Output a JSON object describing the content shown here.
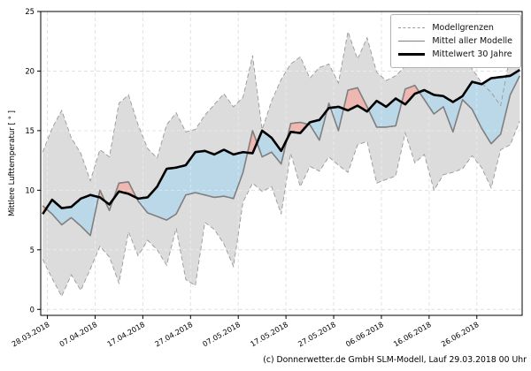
{
  "chart_data": {
    "type": "line",
    "title": "",
    "ylabel": "Mittlere Lufttemperatur [ ° ]",
    "footer": "(c) Donnerwetter.de GmbH SLM-Modell, Lauf 29.03.2018 00 Uhr",
    "x_unit": "days since 28.03.2018",
    "xlim": [
      -1.4,
      99.5
    ],
    "ylim": [
      -0.5,
      25
    ],
    "y_ticks": [
      0,
      5,
      10,
      15,
      20,
      25
    ],
    "x_ticks_days": [
      0,
      10,
      20,
      30,
      40,
      50,
      60,
      70,
      80,
      90
    ],
    "x_tick_labels": [
      "28.03.2018",
      "07.04.2018",
      "17.04.2018",
      "27.04.2018",
      "07.05.2018",
      "17.05.2018",
      "27.05.2018",
      "06.06.2018",
      "16.06.2018",
      "26.06.2018"
    ],
    "grid": true,
    "legend_position": "upper right",
    "legend": [
      {
        "label": "Modellgrenzen",
        "sample": "dashed-gray"
      },
      {
        "label": "Mittel aller Modelle",
        "sample": "solid-gray"
      },
      {
        "label": "Mittelwert 30 Jahre",
        "sample": "solid-black"
      }
    ],
    "x_days": [
      -1,
      1,
      3,
      5,
      7,
      9,
      11,
      13,
      15,
      17,
      19,
      21,
      23,
      25,
      27,
      29,
      31,
      33,
      35,
      37,
      39,
      41,
      43,
      45,
      47,
      49,
      51,
      53,
      55,
      57,
      59,
      61,
      63,
      65,
      67,
      69,
      71,
      73,
      75,
      77,
      79,
      81,
      83,
      85,
      87,
      89,
      91,
      93,
      95,
      97,
      99
    ],
    "series": [
      {
        "name": "Modellgrenze oben",
        "role": "upper_bound",
        "values": [
          13.2,
          15.2,
          16.7,
          14.4,
          13.1,
          10.8,
          13.4,
          12.8,
          17.3,
          18.0,
          15.5,
          13.5,
          12.7,
          15.5,
          16.5,
          14.9,
          15.1,
          16.3,
          17.2,
          18.1,
          17.0,
          17.8,
          21.3,
          15.1,
          17.5,
          19.3,
          20.6,
          21.2,
          19.4,
          20.3,
          20.6,
          19.0,
          23.3,
          21.0,
          22.8,
          19.9,
          19.2,
          19.6,
          20.4,
          22.0,
          20.2,
          24.1,
          20.4,
          21.4,
          20.8,
          20.2,
          19.0,
          18.2,
          17.1,
          21.4,
          23.0
        ]
      },
      {
        "name": "Modellgrenze unten",
        "role": "lower_bound",
        "values": [
          4.2,
          2.6,
          1.1,
          2.9,
          1.6,
          3.4,
          5.3,
          4.4,
          2.2,
          6.5,
          4.5,
          5.8,
          5.0,
          3.7,
          6.8,
          2.5,
          2.0,
          7.3,
          6.7,
          5.5,
          3.6,
          9.0,
          10.6,
          9.9,
          10.3,
          8.0,
          13.1,
          10.3,
          12.0,
          11.6,
          12.8,
          12.1,
          11.5,
          13.8,
          14.1,
          10.6,
          10.9,
          11.2,
          14.8,
          12.3,
          13.0,
          10.0,
          11.3,
          11.5,
          11.8,
          12.9,
          11.9,
          10.2,
          13.4,
          13.8,
          15.8
        ]
      },
      {
        "name": "Mittel aller Modelle",
        "role": "model_mean",
        "values": [
          8.7,
          8.0,
          7.1,
          7.7,
          7.0,
          6.2,
          10.0,
          8.3,
          10.6,
          10.7,
          9.1,
          8.1,
          7.8,
          7.5,
          8.0,
          9.6,
          9.8,
          9.6,
          9.4,
          9.5,
          9.3,
          11.5,
          15.0,
          12.8,
          13.2,
          12.2,
          15.6,
          15.7,
          15.5,
          14.2,
          17.3,
          15.0,
          18.4,
          18.6,
          17.0,
          15.3,
          15.3,
          15.4,
          18.5,
          18.8,
          17.6,
          16.4,
          17.0,
          14.9,
          17.6,
          16.8,
          15.2,
          13.9,
          14.7,
          18.0,
          19.6
        ]
      },
      {
        "name": "Mittelwert 30 Jahre",
        "role": "climate_mean",
        "values": [
          8.0,
          9.2,
          8.5,
          8.6,
          9.3,
          9.6,
          9.4,
          8.8,
          9.9,
          9.7,
          9.3,
          9.4,
          10.3,
          11.8,
          11.9,
          12.1,
          13.2,
          13.3,
          13.0,
          13.4,
          13.0,
          13.2,
          13.1,
          15.0,
          14.4,
          13.3,
          14.9,
          14.8,
          15.7,
          15.9,
          16.9,
          17.0,
          16.7,
          17.1,
          16.6,
          17.5,
          17.0,
          17.7,
          17.2,
          18.1,
          18.4,
          18.0,
          17.9,
          17.4,
          17.9,
          19.1,
          18.9,
          19.4,
          19.5,
          19.6,
          20.1
        ]
      }
    ],
    "colors": {
      "band_fill": "#dcdcdc",
      "bound_line": "#999999",
      "model_mean_line": "#7f7f7f",
      "climate_mean_line": "#000000",
      "warm_fill": "#efb3ab",
      "cold_fill": "#b7d7e8",
      "grid_line": "#c8c8c8",
      "spine": "#000000"
    }
  }
}
